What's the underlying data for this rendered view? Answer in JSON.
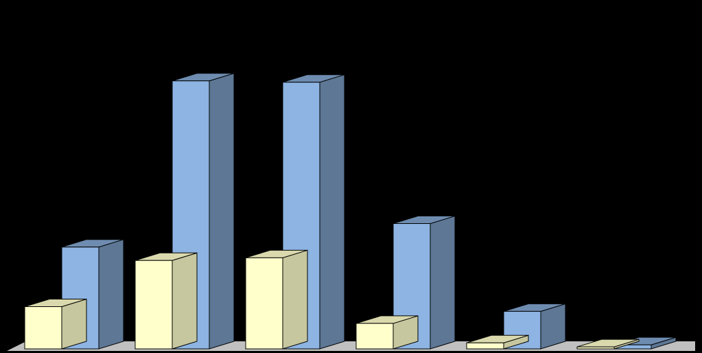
{
  "chart_data": {
    "type": "bar",
    "style": "3d-clustered-column",
    "categories": [
      "",
      "",
      "",
      "",
      "",
      ""
    ],
    "series": [
      {
        "color": "#ffffcc",
        "values": [
          63,
          132,
          136,
          38,
          9,
          3
        ]
      },
      {
        "color": "#8db4e2",
        "values": [
          152,
          400,
          398,
          187,
          56,
          6
        ]
      }
    ],
    "ylim": [
      0,
      410
    ],
    "grid": false,
    "legend": "none",
    "background": "#000000",
    "floor_color": "#c0c0c0"
  }
}
